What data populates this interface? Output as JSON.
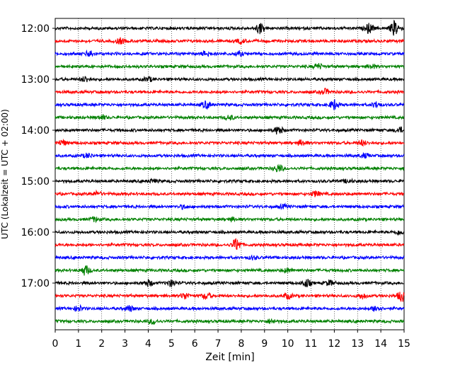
{
  "chart_data": {
    "type": "line",
    "title": "",
    "xlabel": "Zeit  [min]",
    "ylabel": "UTC (Lokalzeit = UTC + 02:00)",
    "xlim": [
      0,
      15
    ],
    "x_ticks": [
      "0",
      "1",
      "2",
      "3",
      "4",
      "5",
      "6",
      "7",
      "8",
      "9",
      "10",
      "11",
      "12",
      "13",
      "14",
      "15"
    ],
    "y_ticks": [
      "12:00",
      "13:00",
      "14:00",
      "15:00",
      "16:00",
      "17:00"
    ],
    "grid": "vertical dotted lines at each minute",
    "series_colors": [
      "#000000",
      "#ff0000",
      "#0000ff",
      "#008000"
    ],
    "rows": [
      {
        "start": "12:00",
        "color": "#000000",
        "events": [
          [
            8.8,
            1.0
          ],
          [
            13.5,
            0.9
          ],
          [
            14.6,
            1.4
          ]
        ]
      },
      {
        "start": "12:15",
        "color": "#ff0000",
        "events": [
          [
            2.8,
            0.5
          ],
          [
            8.0,
            0.4
          ]
        ]
      },
      {
        "start": "12:30",
        "color": "#0000ff",
        "events": [
          [
            1.5,
            0.6
          ],
          [
            6.5,
            0.5
          ],
          [
            7.9,
            0.4
          ]
        ]
      },
      {
        "start": "12:45",
        "color": "#008000",
        "events": [
          [
            11.3,
            0.5
          ],
          [
            13.6,
            0.4
          ]
        ]
      },
      {
        "start": "13:00",
        "color": "#000000",
        "events": [
          [
            1.3,
            0.5
          ],
          [
            4.0,
            0.4
          ]
        ]
      },
      {
        "start": "13:15",
        "color": "#ff0000",
        "events": [
          [
            11.6,
            0.5
          ]
        ]
      },
      {
        "start": "13:30",
        "color": "#0000ff",
        "events": [
          [
            6.5,
            0.7
          ],
          [
            12.0,
            0.9
          ],
          [
            13.8,
            0.5
          ]
        ]
      },
      {
        "start": "13:45",
        "color": "#008000",
        "events": [
          [
            2.0,
            0.4
          ],
          [
            7.5,
            0.4
          ]
        ]
      },
      {
        "start": "14:00",
        "color": "#000000",
        "events": [
          [
            9.6,
            0.8
          ],
          [
            14.8,
            0.5
          ]
        ]
      },
      {
        "start": "14:15",
        "color": "#ff0000",
        "events": [
          [
            0.3,
            0.5
          ],
          [
            10.6,
            0.5
          ],
          [
            13.2,
            0.5
          ]
        ]
      },
      {
        "start": "14:30",
        "color": "#0000ff",
        "events": [
          [
            1.4,
            0.4
          ],
          [
            13.3,
            0.4
          ]
        ]
      },
      {
        "start": "14:45",
        "color": "#008000",
        "events": [
          [
            9.6,
            0.7
          ]
        ]
      },
      {
        "start": "15:00",
        "color": "#000000",
        "events": [
          [
            4.2,
            0.3
          ],
          [
            12.6,
            0.3
          ]
        ]
      },
      {
        "start": "15:15",
        "color": "#ff0000",
        "events": [
          [
            1.8,
            0.4
          ],
          [
            11.2,
            0.5
          ]
        ]
      },
      {
        "start": "15:30",
        "color": "#0000ff",
        "events": [
          [
            5.5,
            0.3
          ],
          [
            9.8,
            0.3
          ]
        ]
      },
      {
        "start": "15:45",
        "color": "#008000",
        "events": [
          [
            1.7,
            0.4
          ],
          [
            7.6,
            0.3
          ]
        ]
      },
      {
        "start": "16:00",
        "color": "#000000",
        "events": [
          [
            14.8,
            0.4
          ]
        ]
      },
      {
        "start": "16:15",
        "color": "#ff0000",
        "events": [
          [
            7.8,
            1.2
          ]
        ]
      },
      {
        "start": "16:30",
        "color": "#0000ff",
        "events": [
          [
            8.5,
            0.3
          ]
        ]
      },
      {
        "start": "16:45",
        "color": "#008000",
        "events": [
          [
            1.3,
            0.9
          ],
          [
            10.0,
            0.4
          ]
        ]
      },
      {
        "start": "17:00",
        "color": "#000000",
        "events": [
          [
            4.0,
            0.6
          ],
          [
            5.0,
            0.6
          ],
          [
            10.8,
            0.7
          ],
          [
            11.8,
            0.5
          ]
        ]
      },
      {
        "start": "17:15",
        "color": "#ff0000",
        "events": [
          [
            5.6,
            0.6
          ],
          [
            6.5,
            0.6
          ],
          [
            10.0,
            0.5
          ],
          [
            13.2,
            0.5
          ],
          [
            14.9,
            1.0
          ]
        ]
      },
      {
        "start": "17:30",
        "color": "#0000ff",
        "events": [
          [
            1.0,
            0.5
          ],
          [
            3.2,
            0.5
          ],
          [
            13.8,
            0.6
          ]
        ]
      },
      {
        "start": "17:45",
        "color": "#008000",
        "events": [
          [
            4.2,
            0.5
          ],
          [
            9.3,
            0.4
          ]
        ]
      }
    ]
  }
}
